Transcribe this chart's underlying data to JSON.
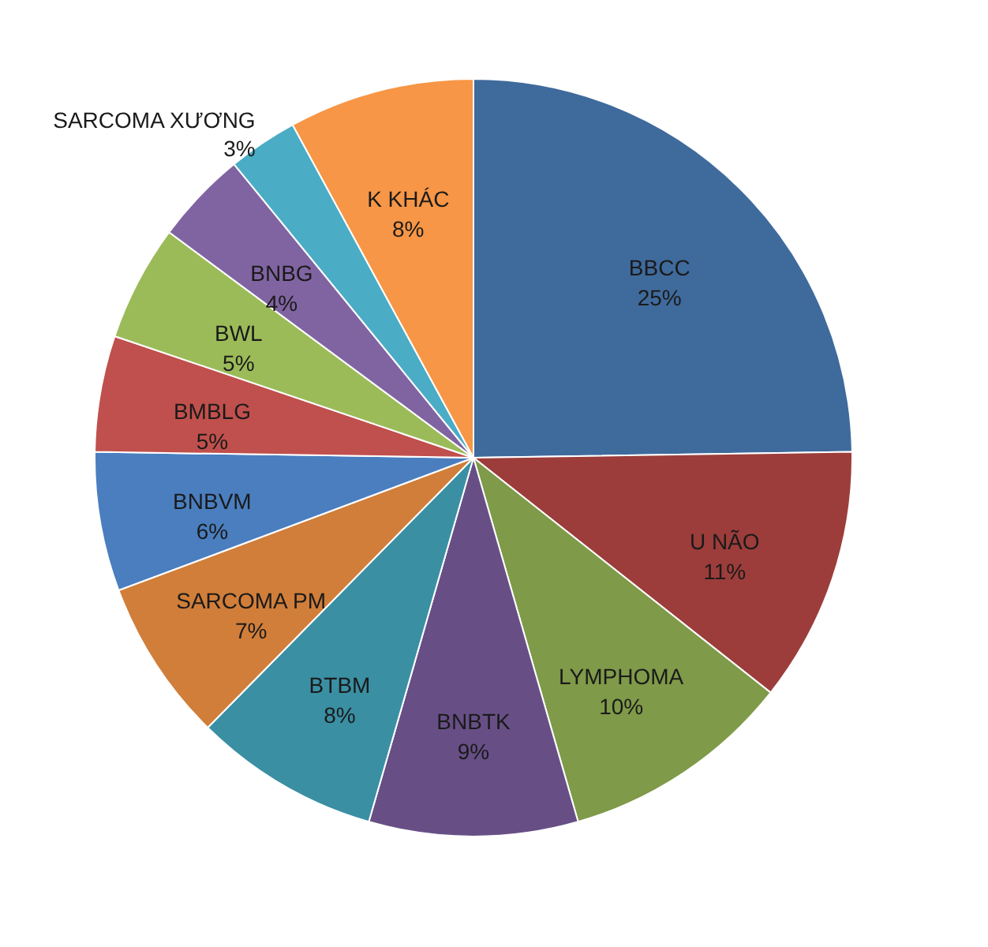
{
  "chart_data": {
    "type": "pie",
    "categories": [
      "BBCC",
      "U NÃO",
      "LYMPHOMA",
      "BNBTK",
      "BTBM",
      "SARCOMA PM",
      "BNBVM",
      "BMBLG",
      "BWL",
      "BNBG",
      "SARCOMA XƯƠNG",
      "K KHÁC"
    ],
    "values": [
      25,
      11,
      10,
      9,
      8,
      7,
      6,
      5,
      5,
      4,
      3,
      8
    ],
    "value_labels": [
      "25%",
      "11%",
      "10%",
      "9%",
      "8%",
      "7%",
      "6%",
      "5%",
      "5%",
      "4%",
      "3%",
      "8%"
    ],
    "colors": [
      "#3f6a9c",
      "#9c3d3b",
      "#7f9a48",
      "#674f86",
      "#3a8fa3",
      "#d07e3a",
      "#4a7ebf",
      "#c0504d",
      "#9bbb59",
      "#8064a2",
      "#4bacc6",
      "#f79646"
    ],
    "legend": false
  }
}
